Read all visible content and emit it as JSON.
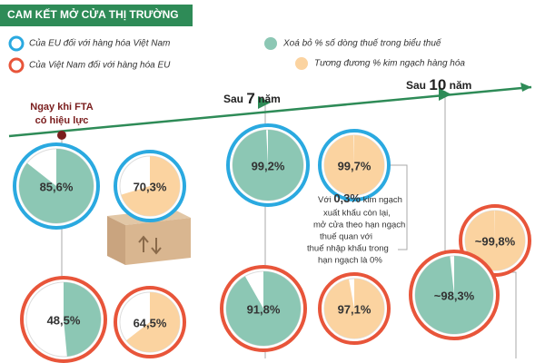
{
  "header": {
    "title": "CAM KẾT MỞ CỬA THỊ TRƯỜNG"
  },
  "legend": {
    "eu": "Của EU đối với hàng hóa Việt Nam",
    "vn": "Của Việt Nam đối với hàng hóa EU",
    "tariff_lines": "Xoá bỏ % số dòng thuế trong biểu thuế",
    "trade_value": "Tương đương % kim ngạch hàng hóa"
  },
  "milestones": [
    {
      "label": [
        "Ngay khi FTA",
        "có hiệu lực"
      ],
      "eu_tariff_lines": {
        "value": 85.6,
        "label": "85,6%"
      },
      "eu_trade_value": {
        "value": 70.3,
        "label": "70,3%"
      },
      "vn_tariff_lines": {
        "value": 48.5,
        "label": "48,5%"
      },
      "vn_trade_value": {
        "value": 64.5,
        "label": "64,5%"
      }
    },
    {
      "label": [
        "Sau",
        "7",
        "năm"
      ],
      "eu_tariff_lines": {
        "value": 99.2,
        "label": "99,2%"
      },
      "eu_trade_value": {
        "value": 99.7,
        "label": "99,7%"
      },
      "vn_tariff_lines": {
        "value": 91.8,
        "label": "91,8%"
      },
      "vn_trade_value": {
        "value": 97.1,
        "label": "97,1%"
      }
    },
    {
      "label": [
        "Sau",
        "10",
        "năm"
      ],
      "vn_trade_value": {
        "value": 99.8,
        "label": "~99,8%"
      },
      "vn_tariff_lines": {
        "value": 98.3,
        "label": "~98,3%"
      }
    }
  ],
  "note": {
    "first_line": [
      "Với",
      "0,3%",
      "kim ngạch"
    ],
    "lines": [
      "xuất khẩu còn lại,",
      "mở cửa theo hạn ngạch",
      "thuế quan với",
      "thuế nhập khẩu trong",
      "hạn ngạch là 0%"
    ]
  }
}
